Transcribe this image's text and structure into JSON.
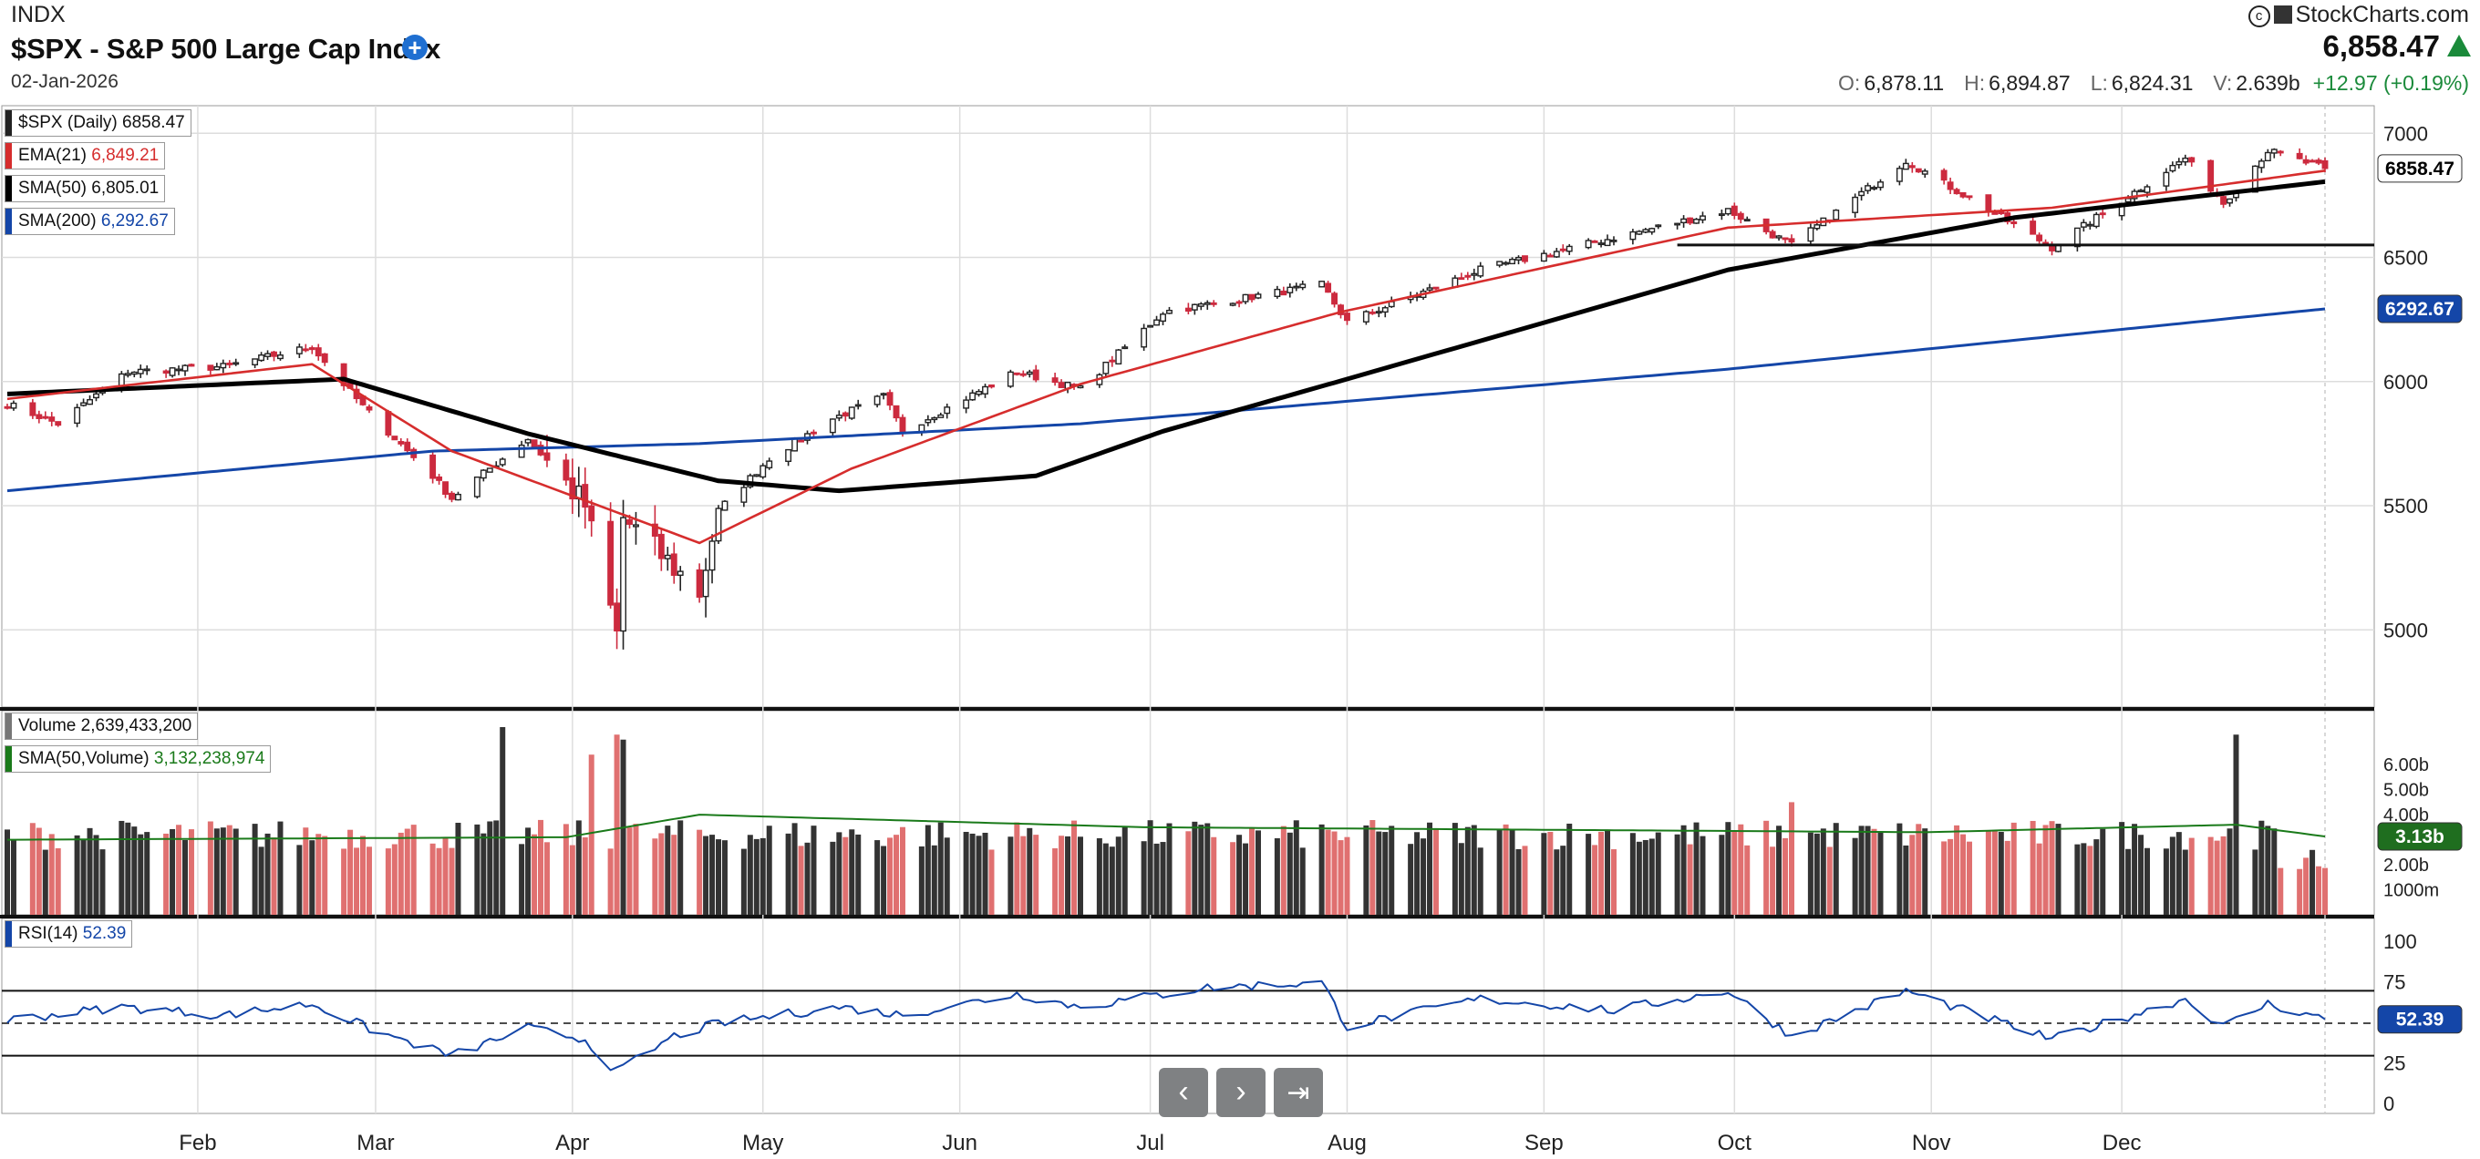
{
  "header": {
    "exchange": "INDX",
    "title": "$SPX - S&P 500 Large Cap Index",
    "date": "02-Jan-2026",
    "brand": "StockCharts.com",
    "last": "6,858.47",
    "open_label": "O:",
    "open": "6,878.11",
    "high_label": "H:",
    "high": "6,894.87",
    "low_label": "L:",
    "low": "6,824.31",
    "vol_label": "V:",
    "volume": "2.639b",
    "change": "+12.97 (+0.19%)"
  },
  "legend": {
    "price_name": "$SPX (Daily)",
    "price_value": "6858.47",
    "ema_name": "EMA(21)",
    "ema_value": "6,849.21",
    "sma50_name": "SMA(50)",
    "sma50_value": "6,805.01",
    "sma200_name": "SMA(200)",
    "sma200_value": "6,292.67",
    "volume_name": "Volume",
    "volume_value": "2,639,433,200",
    "volsma_name": "SMA(50,Volume)",
    "volsma_value": "3,132,238,974",
    "rsi_name": "RSI(14)",
    "rsi_value": "52.39"
  },
  "colors": {
    "up": "#222222",
    "down": "#cc2a3e",
    "ema": "#d62d2d",
    "sma50": "#000000",
    "sma200": "#1446a8",
    "volsma": "#1a7a1a",
    "rsi": "#1446a8"
  },
  "nav": {
    "prev_icon": "chevron-left-icon",
    "next_icon": "chevron-right-icon",
    "end_icon": "skip-to-end-icon"
  },
  "chart_data": [
    {
      "type": "candlestick",
      "title": "$SPX - S&P 500 Large Cap Index",
      "months": [
        "Feb",
        "Mar",
        "Apr",
        "May",
        "Jun",
        "Jul",
        "Aug",
        "Sep",
        "Oct",
        "Nov",
        "Dec"
      ],
      "price_ticks": [
        7000,
        6500,
        6000,
        5500,
        5000
      ],
      "ylim": [
        4700,
        7100
      ],
      "last_price_label": "6858.47",
      "sma200_label": "6292.67",
      "horizontal_line": 6550,
      "close_anchors": [
        [
          "2025-01-02",
          5910
        ],
        [
          "2025-01-10",
          5830
        ],
        [
          "2025-01-21",
          6040
        ],
        [
          "2025-02-05",
          6060
        ],
        [
          "2025-02-19",
          6140
        ],
        [
          "2025-02-27",
          5900
        ],
        [
          "2025-03-10",
          5620
        ],
        [
          "2025-03-13",
          5530
        ],
        [
          "2025-03-25",
          5770
        ],
        [
          "2025-04-03",
          5500
        ],
        [
          "2025-04-08",
          4980
        ],
        [
          "2025-04-09",
          5450
        ],
        [
          "2025-04-21",
          5150
        ],
        [
          "2025-04-24",
          5480
        ],
        [
          "2025-05-02",
          5690
        ],
        [
          "2025-05-12",
          5850
        ],
        [
          "2025-05-20",
          5940
        ],
        [
          "2025-05-23",
          5800
        ],
        [
          "2025-06-10",
          6040
        ],
        [
          "2025-06-20",
          5970
        ],
        [
          "2025-07-03",
          6280
        ],
        [
          "2025-07-28",
          6390
        ],
        [
          "2025-08-01",
          6240
        ],
        [
          "2025-08-22",
          6450
        ],
        [
          "2025-09-30",
          6690
        ],
        [
          "2025-10-10",
          6550
        ],
        [
          "2025-10-28",
          6890
        ],
        [
          "2025-11-20",
          6540
        ],
        [
          "2025-12-11",
          6900
        ],
        [
          "2025-12-17",
          6720
        ],
        [
          "2025-12-24",
          6930
        ],
        [
          "2026-01-02",
          6858.47
        ]
      ],
      "ema21_anchors": [
        [
          "2025-01-02",
          5930
        ],
        [
          "2025-02-19",
          6070
        ],
        [
          "2025-03-13",
          5720
        ],
        [
          "2025-04-21",
          5350
        ],
        [
          "2025-05-15",
          5650
        ],
        [
          "2025-06-20",
          5990
        ],
        [
          "2025-07-31",
          6280
        ],
        [
          "2025-09-30",
          6620
        ],
        [
          "2025-11-20",
          6700
        ],
        [
          "2026-01-02",
          6849.21
        ]
      ],
      "sma50_anchors": [
        [
          "2025-01-02",
          5950
        ],
        [
          "2025-02-24",
          6010
        ],
        [
          "2025-03-25",
          5790
        ],
        [
          "2025-04-24",
          5600
        ],
        [
          "2025-05-13",
          5560
        ],
        [
          "2025-06-13",
          5620
        ],
        [
          "2025-07-03",
          5800
        ],
        [
          "2025-08-01",
          6010
        ],
        [
          "2025-09-30",
          6450
        ],
        [
          "2025-11-14",
          6660
        ],
        [
          "2026-01-02",
          6805.01
        ]
      ],
      "sma200_anchors": [
        [
          "2025-01-02",
          5560
        ],
        [
          "2025-03-10",
          5720
        ],
        [
          "2025-04-21",
          5750
        ],
        [
          "2025-06-20",
          5830
        ],
        [
          "2025-09-30",
          6050
        ],
        [
          "2026-01-02",
          6292.67
        ]
      ]
    },
    {
      "type": "bar",
      "title": "Volume",
      "unit": "billions",
      "volume_ticks": [
        "6.00b",
        "5.00b",
        "4.00b",
        "3.00b",
        "2.00b",
        "1000m"
      ],
      "ylim": [
        0,
        7.5
      ],
      "volsma_label": "3.13b",
      "spikes": [
        [
          "2025-03-21",
          7.5
        ],
        [
          "2025-04-04",
          6.4
        ],
        [
          "2025-04-08",
          7.2
        ],
        [
          "2025-04-09",
          7.0
        ],
        [
          "2025-10-10",
          4.5
        ],
        [
          "2025-12-19",
          7.2
        ]
      ],
      "volsma_anchors": [
        [
          "2025-01-02",
          3.0
        ],
        [
          "2025-03-31",
          3.1
        ],
        [
          "2025-04-21",
          4.0
        ],
        [
          "2025-06-30",
          3.5
        ],
        [
          "2025-10-31",
          3.3
        ],
        [
          "2025-12-19",
          3.6
        ],
        [
          "2026-01-02",
          3.13
        ]
      ]
    },
    {
      "type": "line",
      "title": "RSI(14)",
      "rsi_ticks": [
        100,
        75,
        50,
        25,
        0
      ],
      "ylim": [
        0,
        100
      ],
      "overbought": 70,
      "oversold": 30,
      "mid": 50,
      "rsi_label": "52.39",
      "rsi_anchors": [
        [
          "2025-01-02",
          52
        ],
        [
          "2025-01-20",
          60
        ],
        [
          "2025-02-05",
          55
        ],
        [
          "2025-02-19",
          62
        ],
        [
          "2025-03-01",
          45
        ],
        [
          "2025-03-13",
          30
        ],
        [
          "2025-03-25",
          47
        ],
        [
          "2025-04-03",
          40
        ],
        [
          "2025-04-08",
          20
        ],
        [
          "2025-04-17",
          42
        ],
        [
          "2025-04-24",
          50
        ],
        [
          "2025-05-13",
          60
        ],
        [
          "2025-05-23",
          55
        ],
        [
          "2025-06-10",
          68
        ],
        [
          "2025-06-20",
          60
        ],
        [
          "2025-07-10",
          72
        ],
        [
          "2025-07-28",
          75
        ],
        [
          "2025-08-01",
          48
        ],
        [
          "2025-08-22",
          65
        ],
        [
          "2025-09-12",
          58
        ],
        [
          "2025-09-30",
          70
        ],
        [
          "2025-10-10",
          42
        ],
        [
          "2025-10-28",
          70
        ],
        [
          "2025-11-20",
          40
        ],
        [
          "2025-12-11",
          65
        ],
        [
          "2025-12-17",
          48
        ],
        [
          "2025-12-24",
          62
        ],
        [
          "2026-01-02",
          52.39
        ]
      ]
    }
  ]
}
